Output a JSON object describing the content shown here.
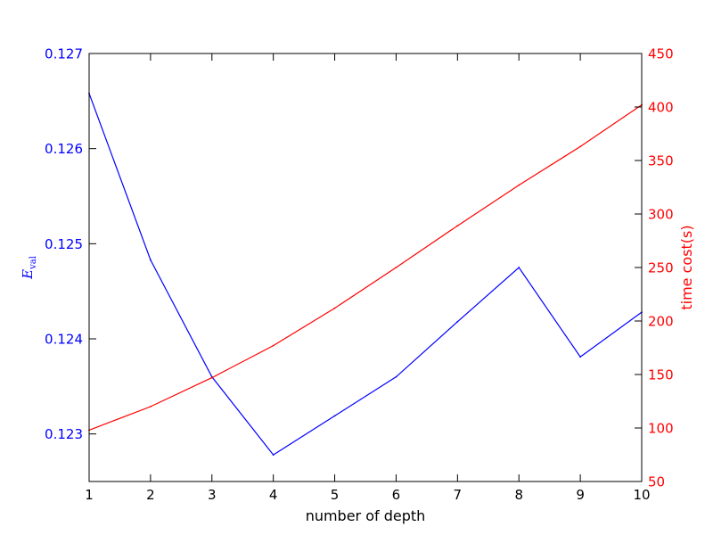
{
  "chart_data": {
    "type": "line",
    "title": "",
    "xlabel": "number of depth",
    "ylabel_left_main": "E",
    "ylabel_left_sub": "val",
    "ylabel_right": "time cost(s)",
    "x": [
      1,
      2,
      3,
      4,
      5,
      6,
      7,
      8,
      9,
      10
    ],
    "xlim": [
      1,
      10
    ],
    "ylim_left": [
      0.1225,
      0.127
    ],
    "ylim_right": [
      50,
      450
    ],
    "x_ticks": [
      "1",
      "2",
      "3",
      "4",
      "5",
      "6",
      "7",
      "8",
      "9",
      "10"
    ],
    "y_ticks_left": [
      "0.123",
      "0.124",
      "0.125",
      "0.126",
      "0.127"
    ],
    "y_ticks_right": [
      "50",
      "100",
      "150",
      "200",
      "250",
      "300",
      "350",
      "400",
      "450"
    ],
    "grid": false,
    "series": [
      {
        "axis": "left",
        "color": "#0000ff",
        "values": [
          0.12658,
          0.12483,
          0.1236,
          0.12278,
          0.12319,
          0.1236,
          0.12418,
          0.12475,
          0.12381,
          0.12428
        ]
      },
      {
        "axis": "right",
        "color": "#ff0000",
        "values": [
          98,
          120,
          147,
          177,
          212,
          250,
          289,
          327,
          363,
          402
        ]
      }
    ]
  }
}
